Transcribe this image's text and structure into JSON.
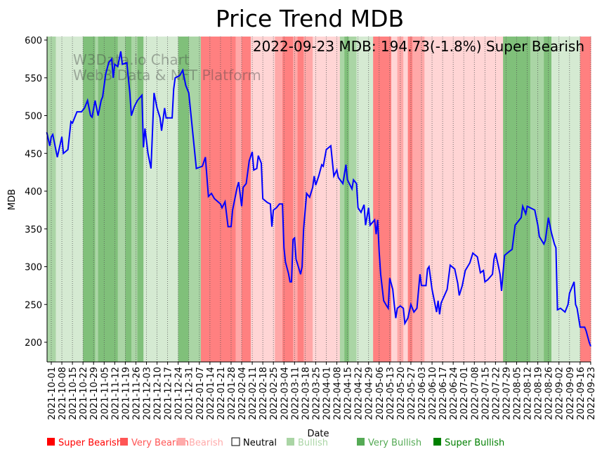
{
  "chart_data": {
    "type": "line",
    "title": "Price Trend MDB",
    "xlabel": "Date",
    "ylabel": "MDB",
    "annotation": "2022-09-23 MDB: 194.73(-1.8%) Super Bearish",
    "watermark": [
      "W3Data.io Chart",
      "Web3 Data & NFT Platform"
    ],
    "start_date": "2021-10-01",
    "x_unit": "days since start_date",
    "xlim": [
      -3,
      357
    ],
    "ylim": [
      175,
      605
    ],
    "yticks": [
      200,
      250,
      300,
      350,
      400,
      450,
      500,
      550,
      600
    ],
    "xtick_labels": [
      "2021-10-01",
      "2021-10-08",
      "2021-10-15",
      "2021-10-22",
      "2021-10-29",
      "2021-11-05",
      "2021-11-12",
      "2021-11-19",
      "2021-11-26",
      "2021-12-03",
      "2021-12-10",
      "2021-12-17",
      "2021-12-24",
      "2021-12-31",
      "2022-01-07",
      "2022-01-14",
      "2022-01-21",
      "2022-01-28",
      "2022-02-04",
      "2022-02-11",
      "2022-02-18",
      "2022-02-25",
      "2022-03-04",
      "2022-03-11",
      "2022-03-18",
      "2022-03-25",
      "2022-04-01",
      "2022-04-08",
      "2022-04-15",
      "2022-04-22",
      "2022-04-29",
      "2022-05-06",
      "2022-05-13",
      "2022-05-20",
      "2022-05-27",
      "2022-06-03",
      "2022-06-10",
      "2022-06-17",
      "2022-06-24",
      "2022-07-01",
      "2022-07-08",
      "2022-07-15",
      "2022-07-22",
      "2022-07-29",
      "2022-08-05",
      "2022-08-12",
      "2022-08-19",
      "2022-08-26",
      "2022-09-02",
      "2022-09-09",
      "2022-09-16",
      "2022-09-23"
    ],
    "series": [
      {
        "name": "MDB",
        "color": "#0000ff",
        "points": [
          [
            -3,
            478
          ],
          [
            -1,
            460
          ],
          [
            0,
            472
          ],
          [
            1,
            475
          ],
          [
            4,
            445
          ],
          [
            7,
            472
          ],
          [
            8,
            450
          ],
          [
            11,
            455
          ],
          [
            13,
            492
          ],
          [
            14,
            490
          ],
          [
            17,
            505
          ],
          [
            20,
            505
          ],
          [
            22,
            510
          ],
          [
            24,
            520
          ],
          [
            26,
            500
          ],
          [
            27,
            498
          ],
          [
            29,
            520
          ],
          [
            31,
            500
          ],
          [
            33,
            520
          ],
          [
            34,
            525
          ],
          [
            36,
            555
          ],
          [
            38,
            570
          ],
          [
            40,
            575
          ],
          [
            41,
            550
          ],
          [
            42,
            568
          ],
          [
            44,
            565
          ],
          [
            46,
            585
          ],
          [
            47,
            568
          ],
          [
            50,
            570
          ],
          [
            52,
            530
          ],
          [
            53,
            500
          ],
          [
            55,
            512
          ],
          [
            57,
            520
          ],
          [
            60,
            527
          ],
          [
            61,
            458
          ],
          [
            62,
            483
          ],
          [
            64,
            450
          ],
          [
            66,
            430
          ],
          [
            68,
            530
          ],
          [
            70,
            510
          ],
          [
            72,
            497
          ],
          [
            73,
            480
          ],
          [
            75,
            510
          ],
          [
            76,
            497
          ],
          [
            80,
            497
          ],
          [
            81,
            535
          ],
          [
            82,
            550
          ],
          [
            85,
            553
          ],
          [
            87,
            560
          ],
          [
            89,
            540
          ],
          [
            91,
            530
          ],
          [
            93,
            490
          ],
          [
            96,
            430
          ],
          [
            100,
            433
          ],
          [
            102,
            445
          ],
          [
            104,
            393
          ],
          [
            106,
            397
          ],
          [
            108,
            390
          ],
          [
            112,
            383
          ],
          [
            113,
            378
          ],
          [
            115,
            386
          ],
          [
            117,
            353
          ],
          [
            119,
            353
          ],
          [
            120,
            375
          ],
          [
            123,
            405
          ],
          [
            124,
            412
          ],
          [
            126,
            380
          ],
          [
            127,
            405
          ],
          [
            129,
            410
          ],
          [
            131,
            440
          ],
          [
            133,
            452
          ],
          [
            134,
            428
          ],
          [
            136,
            430
          ],
          [
            137,
            447
          ],
          [
            139,
            437
          ],
          [
            140,
            390
          ],
          [
            143,
            385
          ],
          [
            145,
            383
          ],
          [
            146,
            353
          ],
          [
            147,
            375
          ],
          [
            149,
            378
          ],
          [
            151,
            383
          ],
          [
            153,
            383
          ],
          [
            154,
            325
          ],
          [
            155,
            306
          ],
          [
            157,
            291
          ],
          [
            158,
            280
          ],
          [
            159,
            280
          ],
          [
            160,
            336
          ],
          [
            161,
            338
          ],
          [
            162,
            310
          ],
          [
            165,
            290
          ],
          [
            166,
            300
          ],
          [
            167,
            350
          ],
          [
            169,
            397
          ],
          [
            171,
            392
          ],
          [
            173,
            405
          ],
          [
            174,
            420
          ],
          [
            175,
            408
          ],
          [
            177,
            420
          ],
          [
            179,
            435
          ],
          [
            180,
            433
          ],
          [
            182,
            455
          ],
          [
            185,
            460
          ],
          [
            187,
            420
          ],
          [
            189,
            428
          ],
          [
            190,
            418
          ],
          [
            193,
            410
          ],
          [
            195,
            435
          ],
          [
            196,
            415
          ],
          [
            199,
            403
          ],
          [
            200,
            415
          ],
          [
            202,
            410
          ],
          [
            203,
            378
          ],
          [
            205,
            372
          ],
          [
            207,
            382
          ],
          [
            208,
            355
          ],
          [
            210,
            378
          ],
          [
            211,
            355
          ],
          [
            214,
            362
          ],
          [
            215,
            343
          ],
          [
            216,
            362
          ],
          [
            217,
            320
          ],
          [
            218,
            290
          ],
          [
            220,
            255
          ],
          [
            222,
            248
          ],
          [
            223,
            245
          ],
          [
            224,
            285
          ],
          [
            226,
            270
          ],
          [
            227,
            250
          ],
          [
            228,
            232
          ],
          [
            229,
            245
          ],
          [
            231,
            248
          ],
          [
            233,
            245
          ],
          [
            234,
            225
          ],
          [
            236,
            232
          ],
          [
            238,
            250
          ],
          [
            240,
            240
          ],
          [
            242,
            245
          ],
          [
            244,
            290
          ],
          [
            245,
            275
          ],
          [
            248,
            275
          ],
          [
            249,
            297
          ],
          [
            250,
            300
          ],
          [
            252,
            270
          ],
          [
            254,
            250
          ],
          [
            255,
            240
          ],
          [
            256,
            255
          ],
          [
            257,
            237
          ],
          [
            258,
            252
          ],
          [
            262,
            270
          ],
          [
            264,
            302
          ],
          [
            267,
            297
          ],
          [
            269,
            278
          ],
          [
            270,
            262
          ],
          [
            272,
            275
          ],
          [
            274,
            295
          ],
          [
            277,
            305
          ],
          [
            279,
            318
          ],
          [
            282,
            313
          ],
          [
            284,
            292
          ],
          [
            286,
            295
          ],
          [
            287,
            280
          ],
          [
            289,
            283
          ],
          [
            292,
            290
          ],
          [
            293,
            310
          ],
          [
            294,
            318
          ],
          [
            296,
            300
          ],
          [
            297,
            290
          ],
          [
            298,
            268
          ],
          [
            299,
            292
          ],
          [
            300,
            315
          ],
          [
            303,
            320
          ],
          [
            305,
            323
          ],
          [
            307,
            355
          ],
          [
            309,
            360
          ],
          [
            311,
            365
          ],
          [
            312,
            380
          ],
          [
            314,
            370
          ],
          [
            315,
            380
          ],
          [
            318,
            377
          ],
          [
            320,
            375
          ],
          [
            322,
            355
          ],
          [
            323,
            340
          ],
          [
            326,
            330
          ],
          [
            327,
            335
          ],
          [
            329,
            365
          ],
          [
            331,
            345
          ],
          [
            333,
            330
          ],
          [
            334,
            325
          ],
          [
            335,
            243
          ],
          [
            337,
            245
          ],
          [
            340,
            240
          ],
          [
            342,
            250
          ],
          [
            343,
            265
          ],
          [
            346,
            280
          ],
          [
            347,
            250
          ],
          [
            348,
            245
          ],
          [
            350,
            220
          ],
          [
            353,
            220
          ],
          [
            354,
            215
          ],
          [
            356,
            200
          ],
          [
            357,
            194.73
          ]
        ]
      }
    ],
    "regime_bands": [
      [
        -3,
        3,
        "Very Bullish"
      ],
      [
        3,
        21,
        "Bullish"
      ],
      [
        21,
        29,
        "Super Bullish"
      ],
      [
        29,
        31,
        "Very Bullish"
      ],
      [
        31,
        44,
        "Super Bullish"
      ],
      [
        44,
        49,
        "Very Bullish"
      ],
      [
        49,
        53,
        "Super Bullish"
      ],
      [
        53,
        57,
        "Very Bullish"
      ],
      [
        57,
        61,
        "Super Bullish"
      ],
      [
        61,
        84,
        "Bullish"
      ],
      [
        84,
        91,
        "Super Bullish"
      ],
      [
        91,
        99,
        "Very Bullish"
      ],
      [
        99,
        122,
        "Super Bearish"
      ],
      [
        122,
        126,
        "Very Bearish"
      ],
      [
        126,
        132,
        "Super Bearish"
      ],
      [
        132,
        148,
        "Bearish"
      ],
      [
        148,
        153,
        "Very Bearish"
      ],
      [
        153,
        160,
        "Super Bearish"
      ],
      [
        160,
        163,
        "Very Bearish"
      ],
      [
        163,
        167,
        "Super Bearish"
      ],
      [
        167,
        173,
        "Very Bearish"
      ],
      [
        173,
        191,
        "Bearish"
      ],
      [
        191,
        194,
        "Very Bullish"
      ],
      [
        194,
        197,
        "Super Bullish"
      ],
      [
        197,
        202,
        "Very Bullish"
      ],
      [
        202,
        213,
        "Bullish"
      ],
      [
        213,
        225,
        "Super Bearish"
      ],
      [
        225,
        229,
        "Bearish"
      ],
      [
        229,
        233,
        "Very Bearish"
      ],
      [
        233,
        236,
        "Bearish"
      ],
      [
        236,
        239,
        "Super Bearish"
      ],
      [
        239,
        247,
        "Very Bearish"
      ],
      [
        247,
        299,
        "Bearish"
      ],
      [
        299,
        317,
        "Super Bullish"
      ],
      [
        317,
        326,
        "Very Bullish"
      ],
      [
        326,
        331,
        "Super Bullish"
      ],
      [
        331,
        350,
        "Bullish"
      ],
      [
        350,
        357,
        "Super Bearish"
      ]
    ],
    "band_colors": {
      "Super Bearish": "#ff8080",
      "Very Bearish": "#ffa8a8",
      "Bearish": "#ffd5d5",
      "Bullish": "#d5ead2",
      "Very Bullish": "#aad5a5",
      "Super Bullish": "#80c07a"
    },
    "legend": [
      {
        "label": "Super Bearish",
        "color": "#ff0000"
      },
      {
        "label": "Very Bearish",
        "color": "#ff5555"
      },
      {
        "label": "Bearish",
        "color": "#ffaaaa"
      },
      {
        "label": "Neutral",
        "color": "#ffffff"
      },
      {
        "label": "Bullish",
        "color": "#aad5a5"
      },
      {
        "label": "Very Bullish",
        "color": "#55aa55"
      },
      {
        "label": "Super Bullish",
        "color": "#008000"
      }
    ]
  }
}
